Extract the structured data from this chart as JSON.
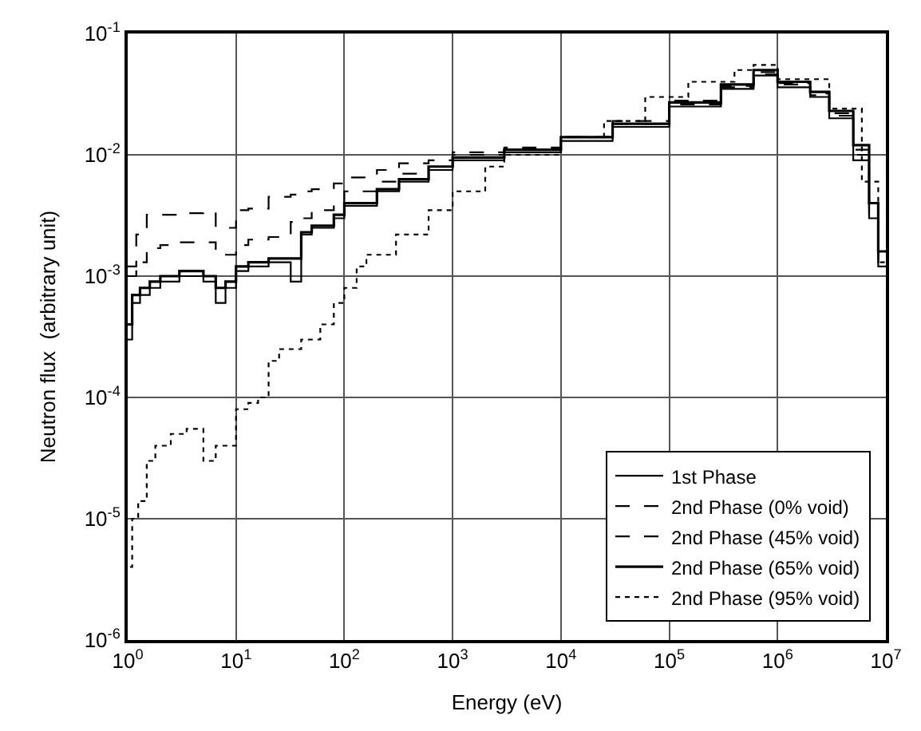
{
  "chart_data": {
    "type": "step",
    "xlabel": "Energy (eV)",
    "ylabel": "Neutron flux  (arbitrary unit)",
    "log": "xy",
    "grid": true,
    "legend": "bottom right",
    "xlim": [
      1,
      10000000
    ],
    "ylim": [
      1e-06,
      0.1
    ],
    "xticks": [
      {
        "value": 1,
        "label": "10$^{0}$"
      },
      {
        "value": 10,
        "label": "10$^{1}$"
      },
      {
        "value": 100,
        "label": "10$^{2}$"
      },
      {
        "value": 1000,
        "label": "10$^{3}$"
      },
      {
        "value": 10000,
        "label": "10$^{4}$"
      },
      {
        "value": 100000,
        "label": "10$^{5}$"
      },
      {
        "value": 1000000,
        "label": "10$^{6}$"
      },
      {
        "value": 10000000,
        "label": "10$^{7}$"
      }
    ],
    "yticks": [
      {
        "value": 1e-06,
        "label": "10$^{-6}$"
      },
      {
        "value": 1e-05,
        "label": "10$^{-5}$"
      },
      {
        "value": 0.0001,
        "label": "10$^{-4}$"
      },
      {
        "value": 0.001,
        "label": "10$^{-3}$"
      },
      {
        "value": 0.01,
        "label": "10$^{-2}$"
      },
      {
        "value": 0.1,
        "label": "10$^{-1}$"
      }
    ],
    "series": [
      {
        "name": "1st Phase",
        "color": "#000000",
        "line_style": "solid",
        "x": [
          1,
          1.1,
          1.3,
          1.6,
          2,
          3,
          5,
          6.5,
          8,
          10,
          13,
          20,
          32,
          40,
          50,
          80,
          100,
          200,
          320,
          600,
          1000,
          3000,
          10000,
          30000,
          100000,
          300000,
          600000,
          1000000,
          2000000,
          3000000,
          5000000,
          7000000,
          8500000,
          10000000
        ],
        "values": [
          0.0003,
          0.0006,
          0.0007,
          0.0008,
          0.0009,
          0.001,
          0.0009,
          0.0006,
          0.0008,
          0.0011,
          0.0012,
          0.0013,
          0.0009,
          0.0022,
          0.0025,
          0.003,
          0.0038,
          0.005,
          0.006,
          0.0075,
          0.009,
          0.0105,
          0.013,
          0.017,
          0.025,
          0.035,
          0.045,
          0.036,
          0.03,
          0.02,
          0.009,
          0.003,
          0.0012,
          0.0012
        ]
      },
      {
        "name": "2nd Phase (0% void)",
        "color": "#000000",
        "line_style": "dashed",
        "x": [
          1,
          1.2,
          1.5,
          2,
          3,
          5,
          6.5,
          8,
          10,
          13,
          20,
          32,
          40,
          50,
          80,
          100,
          200,
          320,
          600,
          1000,
          3000,
          10000,
          30000,
          100000,
          300000,
          600000,
          1000000,
          2000000,
          3000000,
          5000000,
          7000000,
          8500000,
          10000000
        ],
        "values": [
          0.0012,
          0.0022,
          0.0032,
          0.0032,
          0.0033,
          0.0034,
          0.0025,
          0.0025,
          0.0035,
          0.0036,
          0.0045,
          0.0047,
          0.005,
          0.0052,
          0.0058,
          0.0065,
          0.0075,
          0.0085,
          0.009,
          0.0105,
          0.0115,
          0.014,
          0.018,
          0.026,
          0.036,
          0.046,
          0.038,
          0.031,
          0.021,
          0.01,
          0.0032,
          0.0013,
          0.0013
        ]
      },
      {
        "name": "2nd Phase (45% void)",
        "color": "#000000",
        "line_style": "dashed",
        "x": [
          1,
          1.2,
          1.5,
          2,
          3,
          5,
          6.5,
          8,
          10,
          13,
          20,
          32,
          40,
          50,
          80,
          100,
          200,
          320,
          600,
          1000,
          3000,
          10000,
          30000,
          100000,
          300000,
          600000,
          1000000,
          2000000,
          3000000,
          5000000,
          7000000,
          8500000,
          10000000
        ],
        "values": [
          0.001,
          0.0013,
          0.0017,
          0.0018,
          0.0019,
          0.0019,
          0.0015,
          0.0015,
          0.0018,
          0.002,
          0.0021,
          0.0028,
          0.003,
          0.0035,
          0.004,
          0.005,
          0.006,
          0.007,
          0.008,
          0.01,
          0.011,
          0.014,
          0.019,
          0.028,
          0.037,
          0.048,
          0.039,
          0.032,
          0.022,
          0.011,
          0.0035,
          0.0014,
          0.0014
        ]
      },
      {
        "name": "2nd Phase (65% void)",
        "color": "#000000",
        "line_style": "solid",
        "x": [
          1,
          1.1,
          1.3,
          1.6,
          2,
          3,
          5,
          6.5,
          8,
          10,
          13,
          20,
          32,
          40,
          50,
          80,
          100,
          200,
          320,
          600,
          1000,
          3000,
          10000,
          30000,
          100000,
          300000,
          600000,
          1000000,
          2000000,
          3000000,
          5000000,
          7000000,
          8500000,
          10000000
        ],
        "values": [
          0.0004,
          0.0007,
          0.0008,
          0.0009,
          0.001,
          0.0011,
          0.001,
          0.0008,
          0.0009,
          0.0012,
          0.0013,
          0.0014,
          0.0014,
          0.0023,
          0.0026,
          0.0032,
          0.004,
          0.0052,
          0.0063,
          0.008,
          0.0095,
          0.011,
          0.014,
          0.018,
          0.027,
          0.038,
          0.05,
          0.04,
          0.033,
          0.023,
          0.012,
          0.004,
          0.0016,
          0.0016
        ]
      },
      {
        "name": "2nd Phase (95% void)",
        "color": "#000000",
        "line_style": "dotted",
        "x": [
          1.05,
          1.1,
          1.25,
          1.5,
          1.8,
          2.5,
          3.5,
          5,
          6.5,
          8,
          10,
          13,
          16,
          20,
          25,
          40,
          60,
          80,
          100,
          130,
          160,
          300,
          600,
          1000,
          2000,
          3000,
          10000,
          25000,
          60000,
          150000,
          400000,
          600000,
          1000000,
          3000000,
          6000000,
          8500000,
          10000000
        ],
        "values": [
          4e-06,
          1e-05,
          1.4e-05,
          3e-05,
          4e-05,
          5e-05,
          5.5e-05,
          3e-05,
          4e-05,
          4e-05,
          8e-05,
          9e-05,
          0.0001,
          0.0002,
          0.00025,
          0.0003,
          0.0004,
          0.0006,
          0.0008,
          0.0012,
          0.0015,
          0.0022,
          0.0035,
          0.005,
          0.008,
          0.01,
          0.014,
          0.019,
          0.03,
          0.04,
          0.05,
          0.055,
          0.042,
          0.024,
          0.006,
          0.0013,
          0.0013
        ]
      }
    ]
  }
}
